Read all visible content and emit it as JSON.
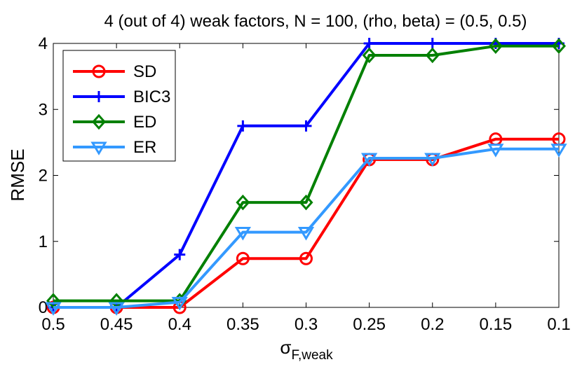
{
  "chart_data": {
    "type": "line",
    "title": "4 (out of 4) weak factors, N = 100, (rho, beta) = (0.5, 0.5)",
    "xlabel_main": "σ",
    "xlabel_sub": "F,weak",
    "ylabel": "RMSE",
    "x": [
      0.5,
      0.45,
      0.4,
      0.35,
      0.3,
      0.25,
      0.2,
      0.15,
      0.1
    ],
    "x_tick_labels": [
      "0.5",
      "0.45",
      "0.4",
      "0.35",
      "0.3",
      "0.25",
      "0.2",
      "0.15",
      "0.1"
    ],
    "x_reversed": true,
    "xlim": [
      0.1,
      0.5
    ],
    "ylim": [
      0,
      4
    ],
    "y_ticks": [
      0,
      1,
      2,
      3,
      4
    ],
    "y_tick_labels": [
      "0",
      "1",
      "2",
      "3",
      "4"
    ],
    "grid": false,
    "legend_position": "top-left",
    "series": [
      {
        "name": "SD",
        "color": "#ff0000",
        "marker": "circle",
        "values": [
          0.0,
          0.0,
          0.0,
          0.74,
          0.74,
          2.24,
          2.24,
          2.55,
          2.55
        ]
      },
      {
        "name": "BIC3",
        "color": "#0000ff",
        "marker": "plus",
        "values": [
          0.0,
          0.0,
          0.8,
          2.75,
          2.75,
          4.0,
          4.0,
          4.0,
          4.0
        ]
      },
      {
        "name": "ED",
        "color": "#008000",
        "marker": "diamond",
        "values": [
          0.1,
          0.1,
          0.1,
          1.59,
          1.59,
          3.82,
          3.82,
          3.96,
          3.96
        ]
      },
      {
        "name": "ER",
        "color": "#3399ff",
        "marker": "triangle-down",
        "values": [
          0.0,
          0.0,
          0.08,
          1.14,
          1.14,
          2.26,
          2.26,
          2.4,
          2.4
        ]
      }
    ]
  }
}
